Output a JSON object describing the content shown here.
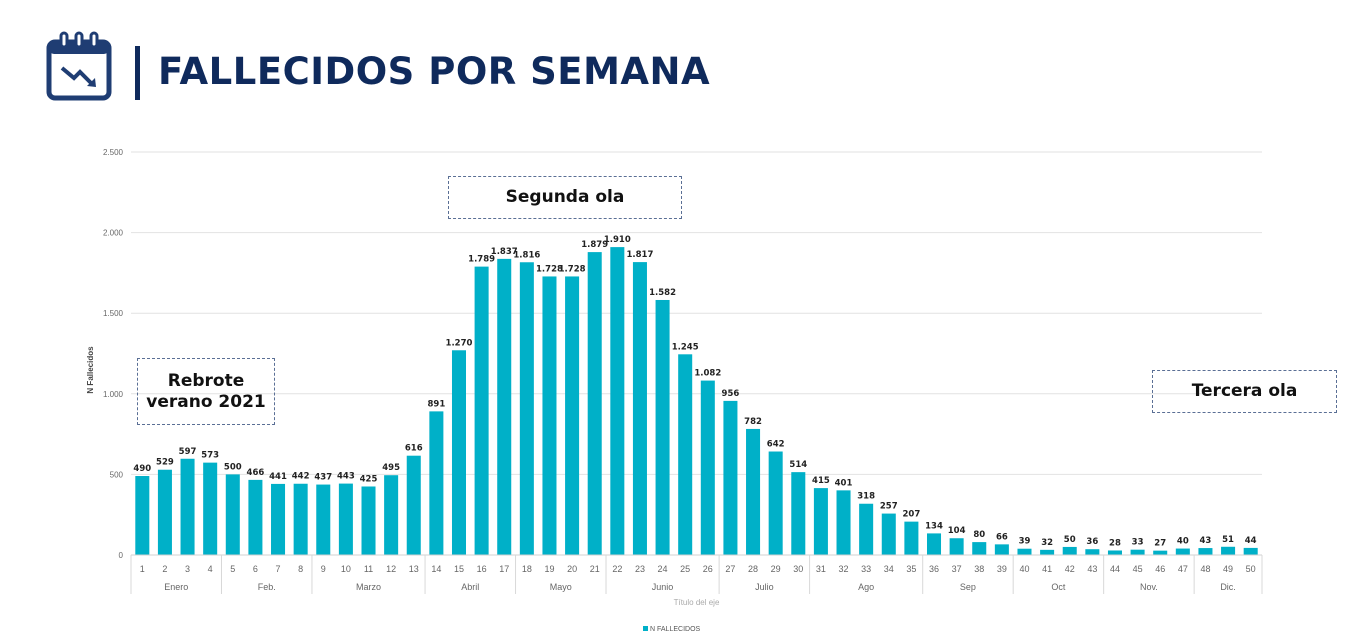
{
  "header": {
    "title": "FALLECIDOS POR SEMANA",
    "icon": "calendar-trend-down-icon"
  },
  "annotations": {
    "rebrote": "Rebrote\nverano 2021",
    "segunda": "Segunda ola",
    "tercera": "Tercera ola"
  },
  "colors": {
    "bar": "#00b0c8",
    "title": "#0f2a5c"
  },
  "chart_data": {
    "type": "bar",
    "title": "FALLECIDOS POR SEMANA",
    "xlabel": "Título del eje",
    "ylabel": "N Fallecidos",
    "ylim": [
      0,
      2500
    ],
    "yticks": [
      0,
      500,
      1000,
      1500,
      2000,
      2500
    ],
    "ytick_labels": [
      "0",
      "500",
      "1.000",
      "1.500",
      "2.000",
      "2.500"
    ],
    "grid": true,
    "legend": {
      "entries": [
        "N FALLECIDOS"
      ],
      "placement": "bottom"
    },
    "categories": [
      "1",
      "2",
      "3",
      "4",
      "5",
      "6",
      "7",
      "8",
      "9",
      "10",
      "11",
      "12",
      "13",
      "14",
      "15",
      "16",
      "17",
      "18",
      "19",
      "20",
      "21",
      "22",
      "23",
      "24",
      "25",
      "26",
      "27",
      "28",
      "29",
      "30",
      "31",
      "32",
      "33",
      "34",
      "35",
      "36",
      "37",
      "38",
      "39",
      "40",
      "41",
      "42",
      "43",
      "44",
      "45",
      "46",
      "47",
      "48",
      "49",
      "50"
    ],
    "series": [
      {
        "name": "N FALLECIDOS",
        "values": [
          490,
          529,
          597,
          573,
          500,
          466,
          441,
          442,
          437,
          443,
          425,
          495,
          616,
          891,
          1270,
          1789,
          1837,
          1816,
          1728,
          1728,
          1879,
          1910,
          1817,
          1582,
          1245,
          1082,
          956,
          782,
          642,
          514,
          415,
          401,
          318,
          257,
          207,
          134,
          104,
          80,
          66,
          39,
          32,
          50,
          36,
          28,
          33,
          27,
          40,
          43,
          51,
          44
        ],
        "labels": [
          "490",
          "529",
          "597",
          "573",
          "500",
          "466",
          "441",
          "442",
          "437",
          "443",
          "425",
          "495",
          "616",
          "891",
          "1.270",
          "1.789",
          "1.837",
          "1.816",
          "1.728",
          "1.728",
          "1.879",
          "1.910",
          "1.817",
          "1.582",
          "1.245",
          "1.082",
          "956",
          "782",
          "642",
          "514",
          "415",
          "401",
          "318",
          "257",
          "207",
          "134",
          "104",
          "80",
          "66",
          "39",
          "32",
          "50",
          "36",
          "28",
          "33",
          "27",
          "40",
          "43",
          "51",
          "44"
        ]
      }
    ],
    "month_groups": [
      {
        "label": "Enero",
        "from": 1,
        "to": 4
      },
      {
        "label": "Feb.",
        "from": 5,
        "to": 8
      },
      {
        "label": "Marzo",
        "from": 9,
        "to": 13
      },
      {
        "label": "Abril",
        "from": 14,
        "to": 17
      },
      {
        "label": "Mayo",
        "from": 18,
        "to": 21
      },
      {
        "label": "Junio",
        "from": 22,
        "to": 26
      },
      {
        "label": "Julio",
        "from": 27,
        "to": 30
      },
      {
        "label": "Ago",
        "from": 31,
        "to": 35
      },
      {
        "label": "Sep",
        "from": 36,
        "to": 39
      },
      {
        "label": "Oct",
        "from": 40,
        "to": 43
      },
      {
        "label": "Nov.",
        "from": 44,
        "to": 47
      },
      {
        "label": "Dic.",
        "from": 48,
        "to": 50
      }
    ]
  }
}
